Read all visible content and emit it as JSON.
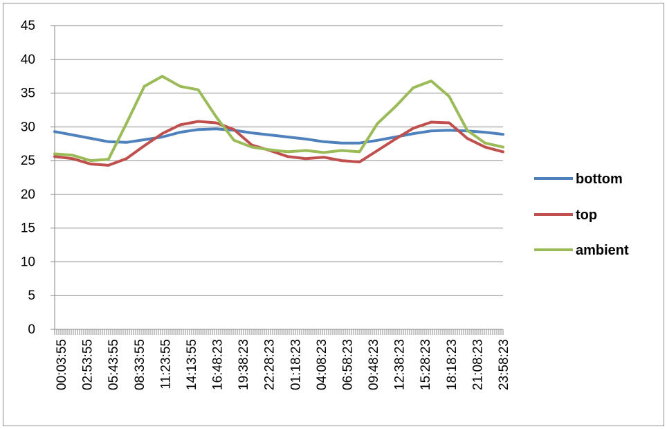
{
  "chart_data": {
    "type": "line",
    "title": "",
    "xlabel": "",
    "ylabel": "",
    "ylim": [
      0,
      45
    ],
    "y_ticks": [
      0,
      5,
      10,
      15,
      20,
      25,
      30,
      35,
      40,
      45
    ],
    "grid": true,
    "legend_position": "right",
    "x_tick_labels": [
      "00:03:55",
      "02:53:55",
      "05:43:55",
      "08:33:55",
      "11:23:55",
      "14:13:55",
      "16:48:23",
      "19:38:23",
      "22:28:23",
      "01:18:23",
      "04:08:23",
      "06:58:23",
      "09:48:23",
      "12:38:23",
      "15:28:23",
      "18:18:23",
      "21:08:23",
      "23:58:23"
    ],
    "series": [
      {
        "name": "bottom",
        "color": "#4f81bd",
        "values": [
          29.3,
          28.8,
          28.3,
          27.8,
          27.7,
          28.1,
          28.5,
          29.2,
          29.6,
          29.7,
          29.5,
          29.1,
          28.8,
          28.5,
          28.2,
          27.8,
          27.6,
          27.6,
          28.0,
          28.5,
          29.0,
          29.4,
          29.5,
          29.4,
          29.2,
          28.9
        ]
      },
      {
        "name": "top",
        "color": "#c0504d",
        "values": [
          25.6,
          25.3,
          24.5,
          24.3,
          25.3,
          27.2,
          29.0,
          30.3,
          30.8,
          30.6,
          29.6,
          27.3,
          26.5,
          25.6,
          25.3,
          25.5,
          25.0,
          24.8,
          26.5,
          28.2,
          29.8,
          30.7,
          30.6,
          28.3,
          27.0,
          26.3
        ]
      },
      {
        "name": "ambient",
        "color": "#9bbb59",
        "values": [
          26.0,
          25.8,
          25.0,
          25.2,
          30.5,
          36.0,
          37.5,
          36.0,
          35.5,
          31.5,
          28.0,
          27.0,
          26.6,
          26.3,
          26.5,
          26.2,
          26.5,
          26.3,
          30.5,
          33.0,
          35.8,
          36.8,
          34.5,
          29.5,
          27.6,
          27.0
        ]
      }
    ]
  }
}
